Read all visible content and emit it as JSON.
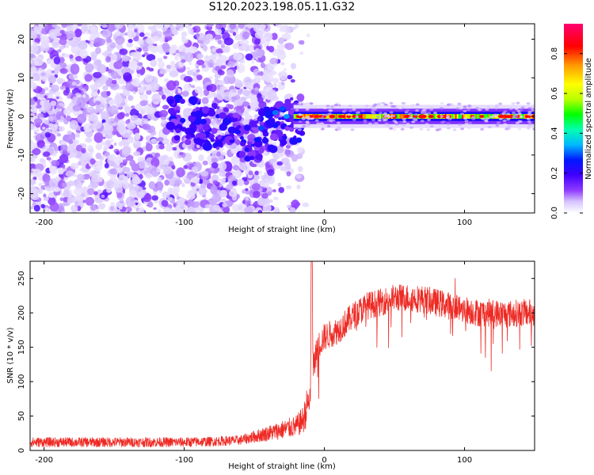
{
  "title": "S120.2023.198.05.11.G32",
  "chart_data": [
    {
      "type": "heatmap",
      "xlabel": "Height of straight line (km)",
      "ylabel": "Frequency (Hz)",
      "xlim": [
        -210,
        150
      ],
      "ylim": [
        -25,
        24
      ],
      "x_ticks": [
        -200,
        -100,
        0,
        100
      ],
      "y_ticks": [
        -20,
        -10,
        0,
        10,
        20
      ],
      "colorbar": {
        "label": "Normalized spectral amplitude",
        "range": [
          0,
          0.95
        ],
        "ticks": [
          "0.0",
          "0.2",
          "0.4",
          "0.6",
          "0.8"
        ],
        "colors": [
          "#ffffff",
          "#d6c4ff",
          "#8f3bff",
          "#4000ff",
          "#0018ff",
          "#00b8ff",
          "#00ffb0",
          "#00ff00",
          "#b8ff00",
          "#ffff00",
          "#ff9a00",
          "#ff0000",
          "#ff0070"
        ]
      },
      "description_points": [
        {
          "x": -200,
          "spread_hz": 25,
          "peak_amp": 0.25
        },
        {
          "x": -100,
          "spread_hz": 20,
          "peak_amp": 0.25
        },
        {
          "x": -60,
          "center_hz": -6,
          "peak_amp": 0.3
        },
        {
          "x": -40,
          "center_hz": -3,
          "peak_amp": 0.4
        },
        {
          "x": -20,
          "center_hz": 0,
          "peak_amp": 0.9
        },
        {
          "x": 0,
          "center_hz": 0,
          "peak_amp": 0.9
        },
        {
          "x": 100,
          "center_hz": 0,
          "peak_amp": 0.9
        },
        {
          "x": 150,
          "center_hz": 0,
          "peak_amp": 0.9
        }
      ]
    },
    {
      "type": "line",
      "xlabel": "Height of straight line (km)",
      "ylabel": "SNR (10 * v/v)",
      "xlim": [
        -210,
        150
      ],
      "ylim": [
        0,
        275
      ],
      "x_ticks": [
        -200,
        -100,
        0,
        100
      ],
      "y_ticks": [
        0,
        50,
        100,
        150,
        200,
        250
      ],
      "series": [
        {
          "color": "#ee2a24",
          "x": [
            -210,
            -180,
            -150,
            -120,
            -100,
            -80,
            -60,
            -50,
            -40,
            -30,
            -20,
            -15,
            -10,
            -9,
            -8,
            -5,
            0,
            10,
            20,
            30,
            40,
            50,
            60,
            70,
            80,
            90,
            100,
            110,
            120,
            130,
            140,
            150
          ],
          "y": [
            12,
            12,
            12,
            12,
            12,
            13,
            15,
            20,
            25,
            30,
            35,
            45,
            80,
            275,
            120,
            150,
            165,
            175,
            195,
            210,
            215,
            222,
            222,
            220,
            215,
            210,
            205,
            200,
            200,
            198,
            200,
            200
          ]
        }
      ]
    }
  ]
}
